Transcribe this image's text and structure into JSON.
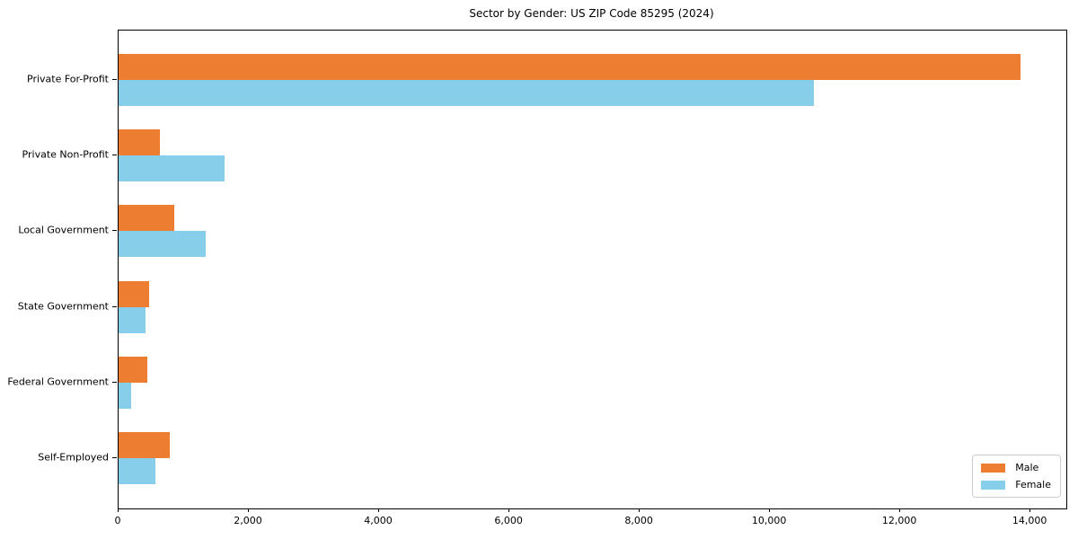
{
  "chart_data": {
    "type": "bar",
    "orientation": "horizontal",
    "title": "Sector by Gender: US ZIP Code 85295 (2024)",
    "categories": [
      "Private For-Profit",
      "Private Non-Profit",
      "Local Government",
      "State Government",
      "Federal Government",
      "Self-Employed"
    ],
    "series": [
      {
        "name": "Male",
        "color": "#ED7D31",
        "values": [
          13850,
          630,
          850,
          470,
          440,
          790
        ]
      },
      {
        "name": "Female",
        "color": "#87CEEB",
        "values": [
          10670,
          1620,
          1340,
          410,
          190,
          570
        ]
      }
    ],
    "xlabel": "",
    "ylabel": "",
    "xlim": [
      0,
      14550
    ],
    "x_ticks": [
      {
        "value": 0,
        "label": "0"
      },
      {
        "value": 2000,
        "label": "2,000"
      },
      {
        "value": 4000,
        "label": "4,000"
      },
      {
        "value": 6000,
        "label": "6,000"
      },
      {
        "value": 8000,
        "label": "8,000"
      },
      {
        "value": 10000,
        "label": "10,000"
      },
      {
        "value": 12000,
        "label": "12,000"
      },
      {
        "value": 14000,
        "label": "14,000"
      }
    ],
    "grid": false,
    "legend": {
      "position": "lower right"
    }
  }
}
